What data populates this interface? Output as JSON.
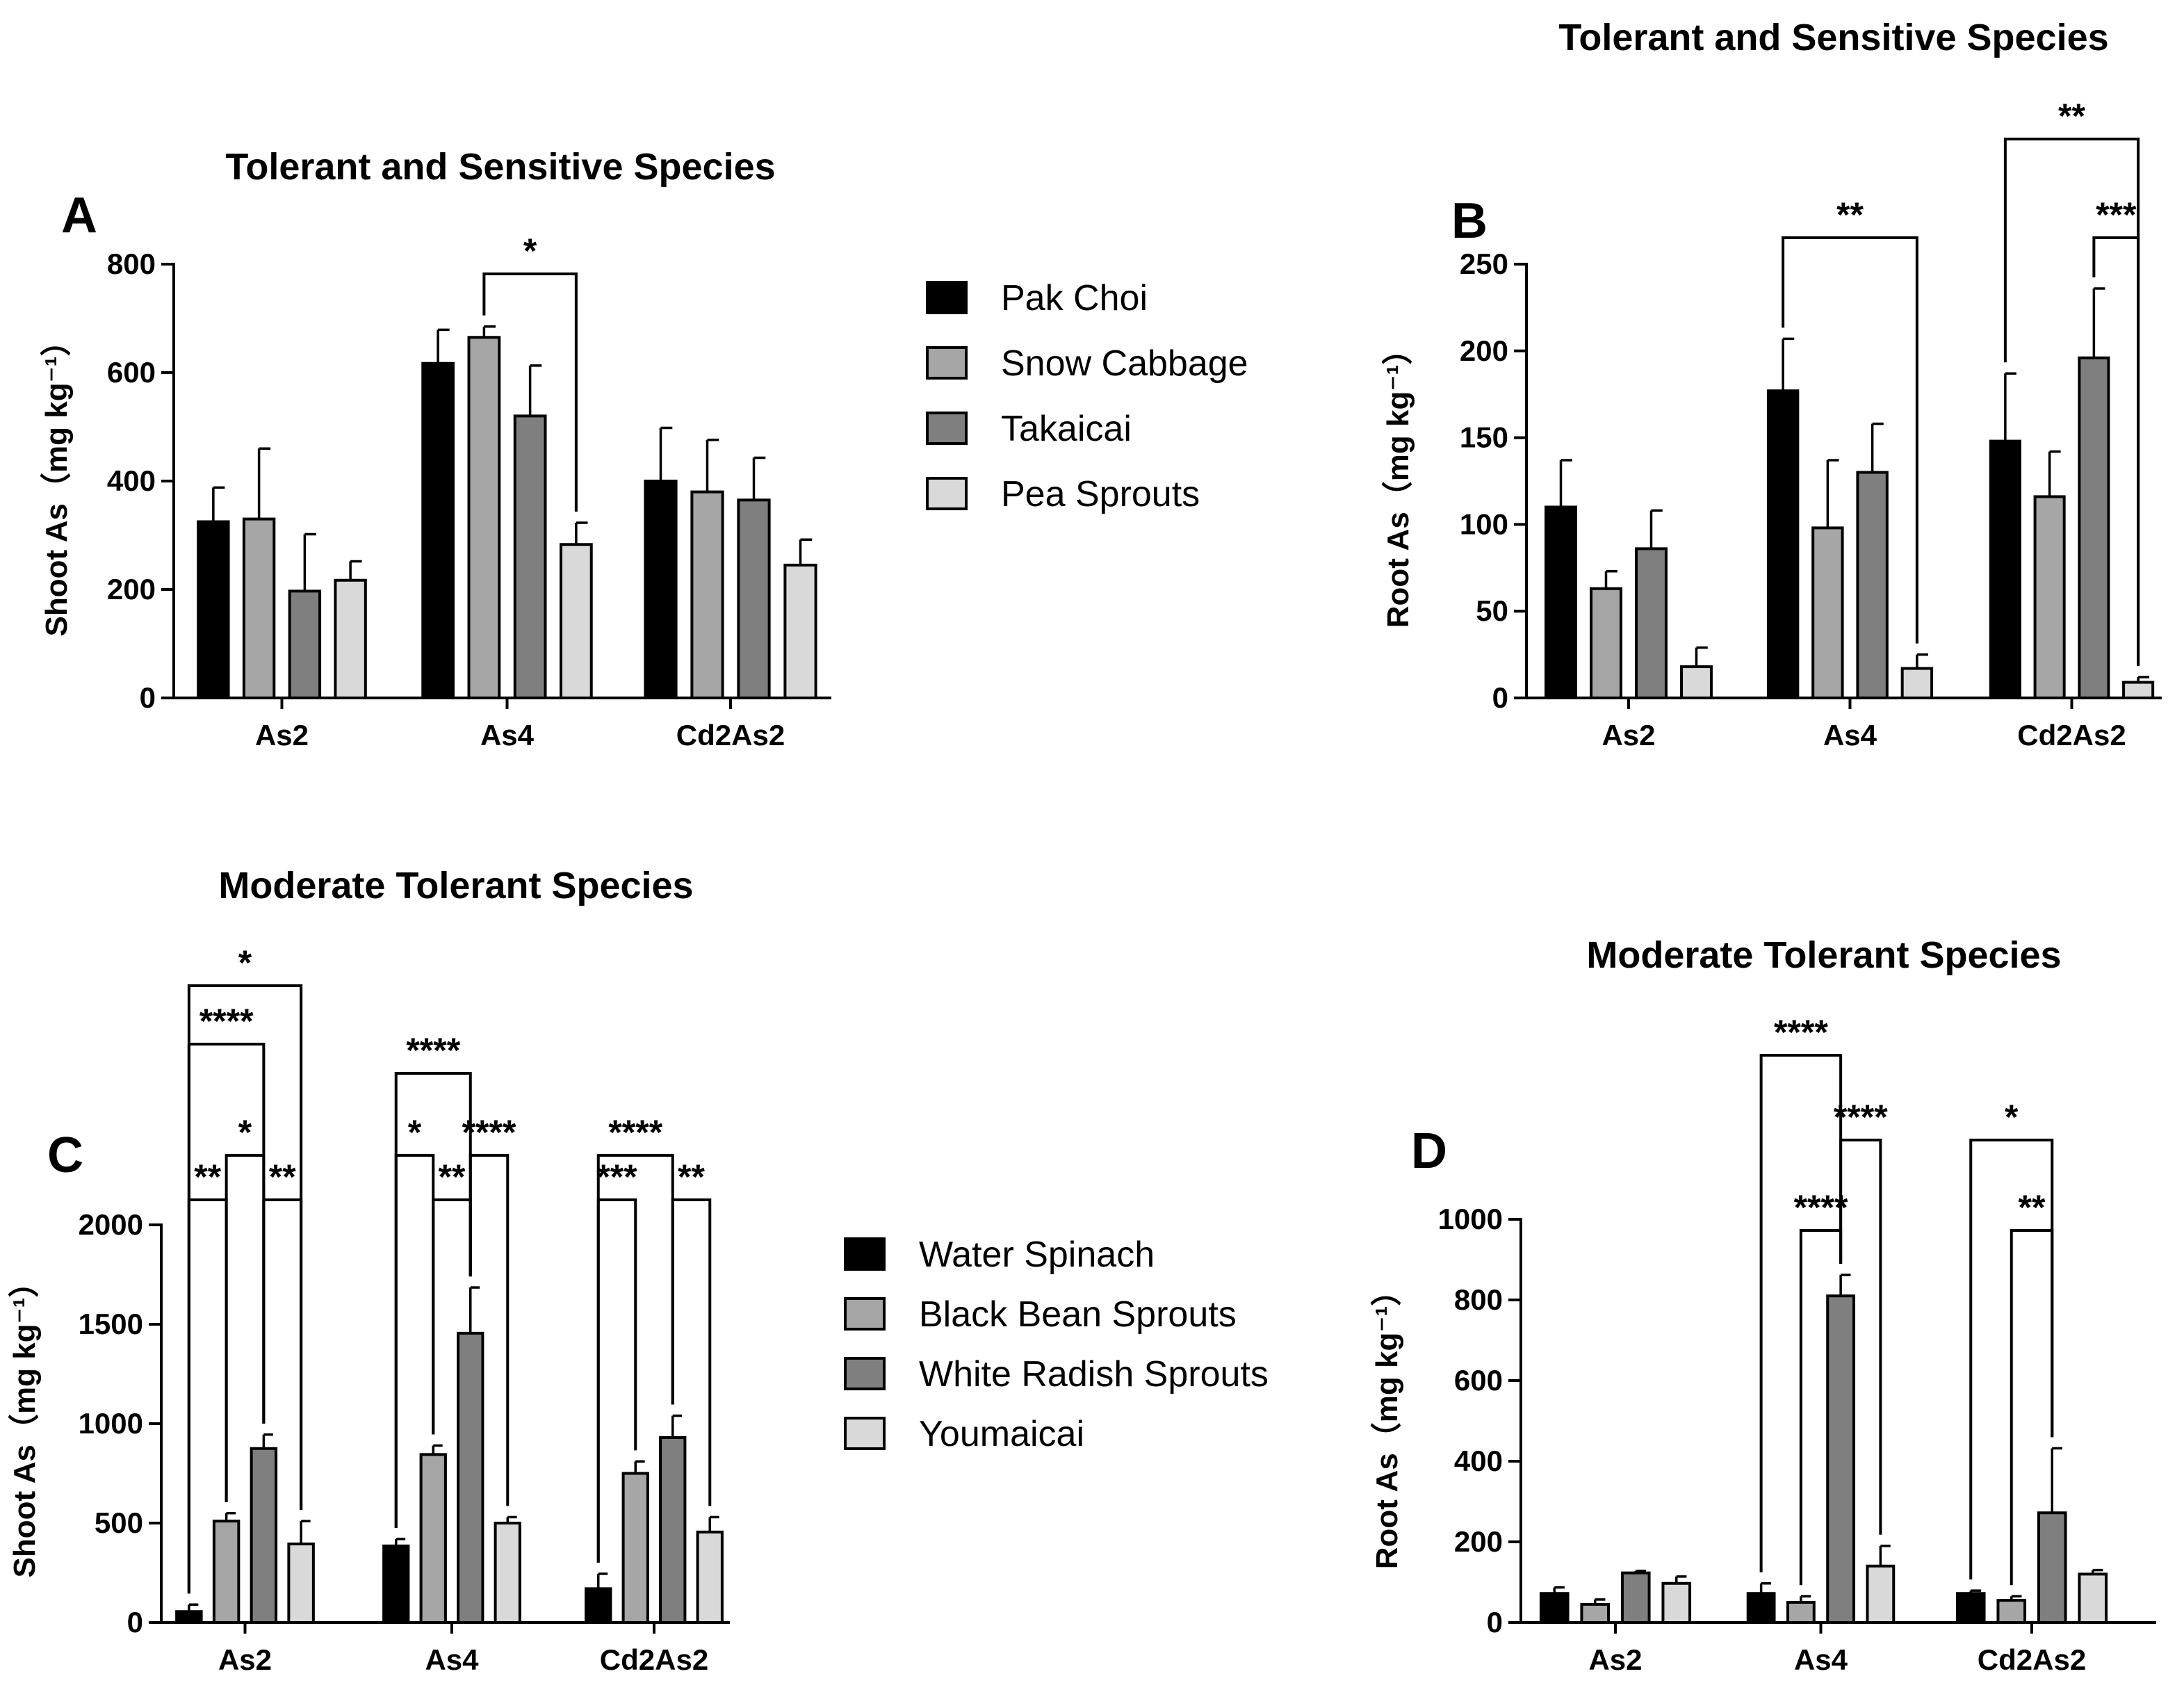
{
  "chart_data": [
    {
      "panel": "A",
      "type": "bar",
      "title": "Tolerant and Sensitive Species",
      "ylabel": "Shoot As（mg kg⁻¹）",
      "ylim": [
        0,
        800
      ],
      "yticks": [
        0,
        200,
        400,
        600,
        800
      ],
      "categories": [
        "As2",
        "As4",
        "Cd2As2"
      ],
      "series": [
        {
          "name": "Pak Choi",
          "color": "#000000",
          "values": [
            325,
            617,
            400
          ],
          "errors": [
            63,
            62,
            98
          ]
        },
        {
          "name": "Snow Cabbage",
          "color": "#a6a6a6",
          "values": [
            330,
            665,
            380
          ],
          "errors": [
            130,
            20,
            96
          ]
        },
        {
          "name": "Takaicai",
          "color": "#7f7f7f",
          "values": [
            197,
            520,
            365
          ],
          "errors": [
            105,
            93,
            78
          ]
        },
        {
          "name": "Pea Sprouts",
          "color": "#d9d9d9",
          "values": [
            217,
            283,
            245
          ],
          "errors": [
            35,
            40,
            47
          ]
        }
      ],
      "legend": [
        "Pak Choi",
        " Snow Cabbage",
        "Takaicai",
        "Pea Sprouts"
      ],
      "annotations": [
        {
          "group": "As4",
          "from": 1,
          "to": 3,
          "label": "*"
        }
      ]
    },
    {
      "panel": "B",
      "type": "bar",
      "title": "Tolerant and Sensitive Species",
      "ylabel": "Root As（mg kg⁻¹）",
      "ylim": [
        0,
        250
      ],
      "yticks": [
        0,
        50,
        100,
        150,
        200,
        250
      ],
      "categories": [
        "As2",
        "As4",
        "Cd2As2"
      ],
      "series": [
        {
          "name": "Pak Choi",
          "color": "#000000",
          "values": [
            110,
            177,
            148
          ],
          "errors": [
            27,
            30,
            39
          ]
        },
        {
          "name": "Snow Cabbage",
          "color": "#a6a6a6",
          "values": [
            63,
            98,
            116
          ],
          "errors": [
            10,
            39,
            26
          ]
        },
        {
          "name": "Takaicai",
          "color": "#7f7f7f",
          "values": [
            86,
            130,
            196
          ],
          "errors": [
            22,
            28,
            40
          ]
        },
        {
          "name": "Pea Sprouts",
          "color": "#d9d9d9",
          "values": [
            18,
            17,
            9
          ],
          "errors": [
            11,
            8,
            3
          ]
        }
      ],
      "annotations": [
        {
          "group": "As4",
          "from": 0,
          "to": 3,
          "label": "**"
        },
        {
          "group": "Cd2As2",
          "from": 0,
          "to": 3,
          "label": "**"
        },
        {
          "group": "Cd2As2",
          "from": 2,
          "to": 3,
          "label": "***"
        }
      ]
    },
    {
      "panel": "C",
      "type": "bar",
      "title": "Moderate Tolerant Species",
      "ylabel": "Shoot As（mg kg⁻¹）",
      "ylim": [
        0,
        2000
      ],
      "yticks": [
        0,
        500,
        1000,
        1500,
        2000
      ],
      "categories": [
        "As2",
        "As4",
        "Cd2As2"
      ],
      "series": [
        {
          "name": "Water Spinach",
          "color": "#000000",
          "values": [
            55,
            385,
            170
          ],
          "errors": [
            35,
            35,
            75
          ]
        },
        {
          "name": "Black Bean Sprouts",
          "color": "#a6a6a6",
          "values": [
            510,
            845,
            750
          ],
          "errors": [
            40,
            45,
            60
          ]
        },
        {
          "name": "White Radish Sprouts",
          "color": "#7f7f7f",
          "values": [
            875,
            1455,
            930
          ],
          "errors": [
            70,
            230,
            110
          ]
        },
        {
          "name": "Youmaicai",
          "color": "#d9d9d9",
          "values": [
            395,
            500,
            455
          ],
          "errors": [
            115,
            30,
            75
          ]
        }
      ],
      "legend": [
        "Water Spinach",
        "Black Bean Sprouts",
        "White Radish Sprouts",
        "Youmaicai"
      ],
      "annotations": [
        {
          "group": "As2",
          "from": 0,
          "to": 1,
          "label": "**"
        },
        {
          "group": "As2",
          "from": 2,
          "to": 3,
          "label": "**"
        },
        {
          "group": "As2",
          "from": 1,
          "to": 2,
          "label": "*"
        },
        {
          "group": "As2",
          "from": 0,
          "to": 2,
          "label": "****"
        },
        {
          "group": "As2",
          "from": 0,
          "to": 3,
          "label": "*"
        },
        {
          "group": "As4",
          "from": 1,
          "to": 2,
          "label": "**"
        },
        {
          "group": "As4",
          "from": 0,
          "to": 1,
          "label": "*"
        },
        {
          "group": "As4",
          "from": 2,
          "to": 3,
          "label": "****"
        },
        {
          "group": "As4",
          "from": 0,
          "to": 2,
          "label": "****"
        },
        {
          "group": "Cd2As2",
          "from": 0,
          "to": 1,
          "label": "***"
        },
        {
          "group": "Cd2As2",
          "from": 2,
          "to": 3,
          "label": "**"
        },
        {
          "group": "Cd2As2",
          "from": 0,
          "to": 2,
          "label": "****"
        }
      ]
    },
    {
      "panel": "D",
      "type": "bar",
      "title": "Moderate Tolerant Species",
      "ylabel": "Root As（mg kg⁻¹）",
      "ylim": [
        0,
        1000
      ],
      "yticks": [
        0,
        200,
        400,
        600,
        800,
        1000
      ],
      "categories": [
        "As2",
        "As4",
        "Cd2As2"
      ],
      "series": [
        {
          "name": "Water Spinach",
          "color": "#000000",
          "values": [
            72,
            72,
            72
          ],
          "errors": [
            15,
            25,
            7
          ]
        },
        {
          "name": "Black Bean Sprouts",
          "color": "#a6a6a6",
          "values": [
            45,
            50,
            55
          ],
          "errors": [
            12,
            15,
            10
          ]
        },
        {
          "name": "White Radish Sprouts",
          "color": "#7f7f7f",
          "values": [
            123,
            810,
            272
          ],
          "errors": [
            5,
            52,
            160
          ]
        },
        {
          "name": "Youmaicai",
          "color": "#d9d9d9",
          "values": [
            97,
            140,
            120
          ],
          "errors": [
            17,
            50,
            10
          ]
        }
      ],
      "annotations": [
        {
          "group": "As4",
          "from": 1,
          "to": 2,
          "label": "****"
        },
        {
          "group": "As4",
          "from": 2,
          "to": 3,
          "label": "****"
        },
        {
          "group": "As4",
          "from": 0,
          "to": 2,
          "label": "****"
        },
        {
          "group": "Cd2As2",
          "from": 1,
          "to": 2,
          "label": "**"
        },
        {
          "group": "Cd2As2",
          "from": 0,
          "to": 2,
          "label": "*"
        }
      ]
    }
  ]
}
